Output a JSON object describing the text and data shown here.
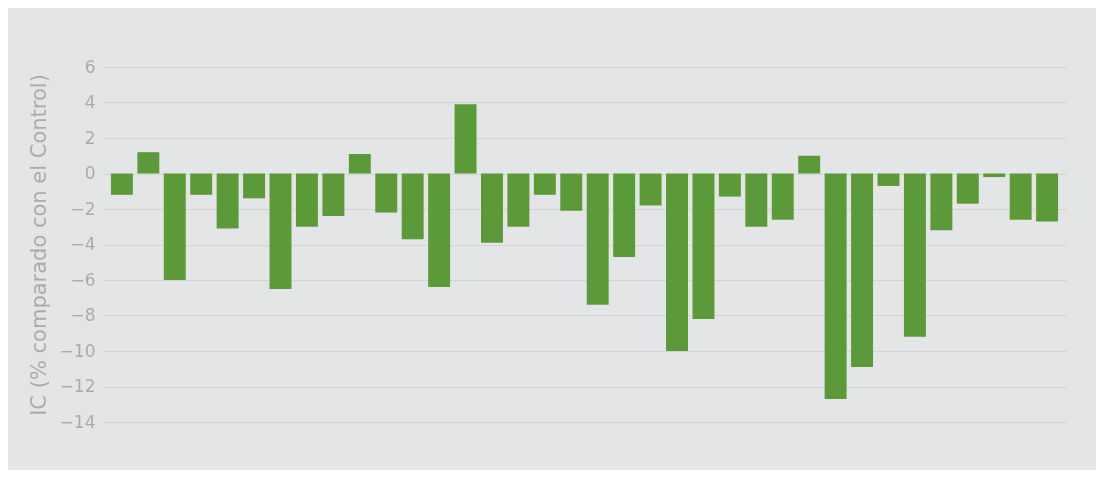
{
  "chart_data": {
    "type": "bar",
    "ylabel": "IC (% comparado con el Control)",
    "categories": [
      null,
      null,
      null,
      null,
      null,
      null,
      null,
      null,
      null,
      null,
      null,
      null,
      null,
      null,
      null,
      null,
      null,
      null,
      null,
      null,
      null,
      null,
      null,
      null,
      null,
      null,
      null,
      null,
      null,
      null,
      null,
      null,
      null,
      null,
      null,
      null
    ],
    "values": [
      -1.2,
      1.2,
      -6.0,
      -1.2,
      -3.1,
      -1.4,
      -6.5,
      -3.0,
      -2.4,
      1.1,
      -2.2,
      -3.7,
      -6.4,
      3.9,
      -3.9,
      -3.0,
      -1.2,
      -2.1,
      -7.4,
      -4.7,
      -1.8,
      -10.0,
      -8.2,
      -1.3,
      -3.0,
      -2.6,
      1.0,
      -12.7,
      -10.9,
      -0.7,
      -9.2,
      -3.2,
      -1.7,
      -0.2,
      -2.6,
      -2.7
    ],
    "color": "#5b9a38",
    "ylim": [
      -14,
      6
    ],
    "yticks": [
      -14,
      -12,
      -10,
      -8,
      -6,
      -4,
      -2,
      0,
      2,
      4,
      6
    ],
    "grid": "y",
    "tick_labels": "y"
  }
}
